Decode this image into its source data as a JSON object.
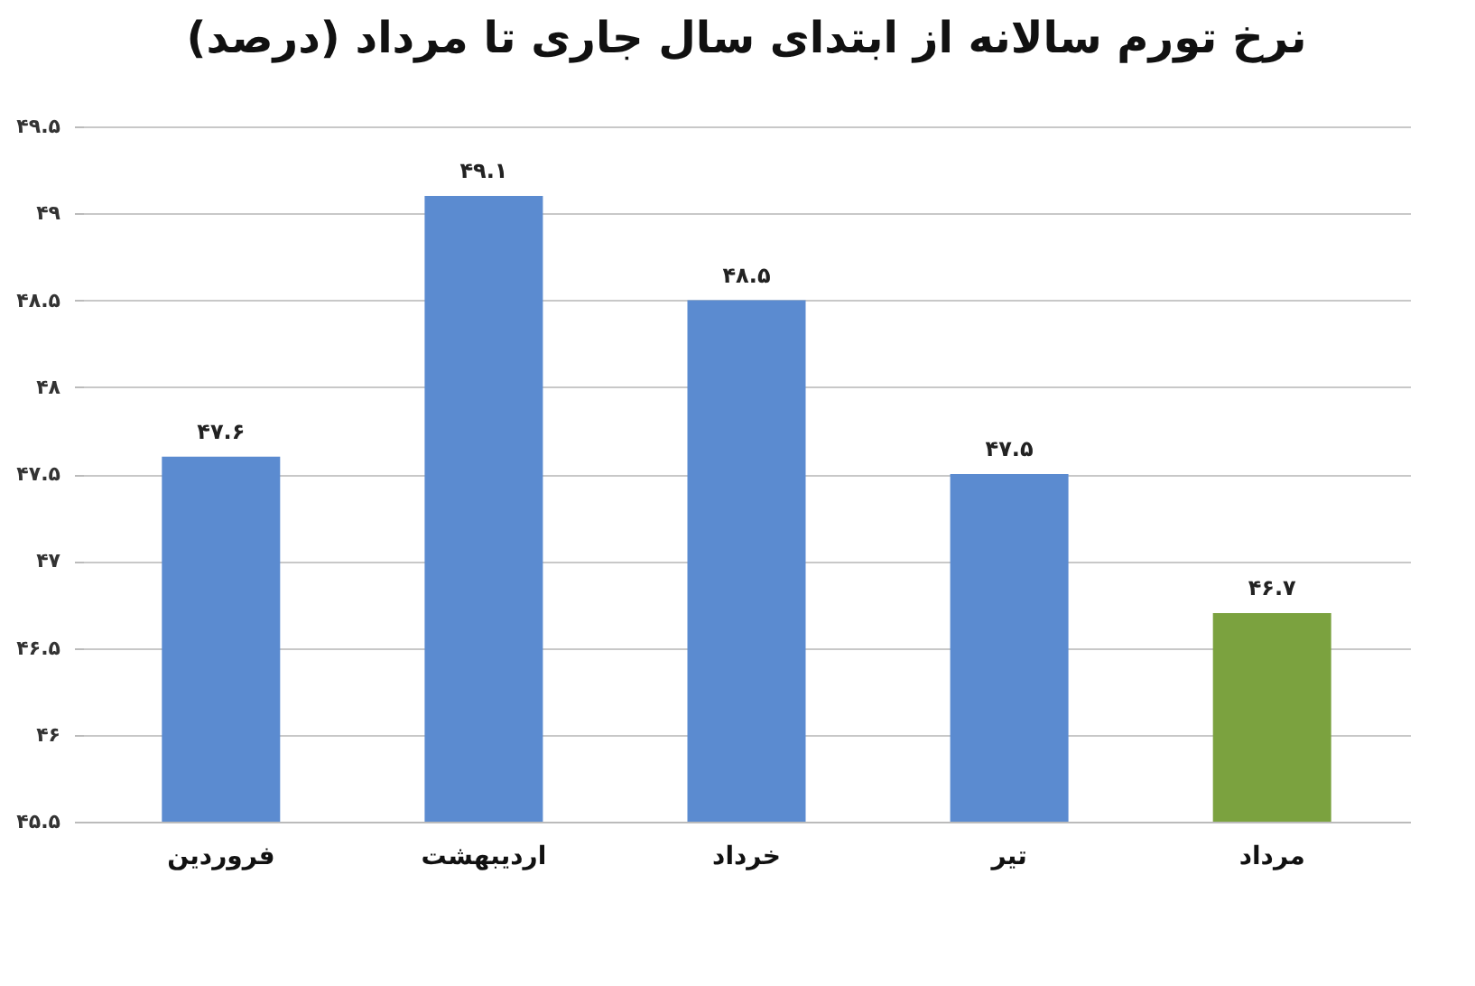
{
  "chart_data": {
    "type": "bar",
    "title": "نرخ تورم سالانه از ابتدای سال جاری تا مرداد (درصد)",
    "categories": [
      "فروردین",
      "اردیبهشت",
      "خرداد",
      "تیر",
      "مرداد"
    ],
    "values": [
      47.6,
      49.1,
      48.5,
      47.5,
      46.7
    ],
    "value_labels": [
      "۴۷.۶",
      "۴۹.۱",
      "۴۸.۵",
      "۴۷.۵",
      "۴۶.۷"
    ],
    "colors": [
      "#5b8bd0",
      "#5b8bd0",
      "#5b8bd0",
      "#5b8bd0",
      "#7ba23f"
    ],
    "ylim": [
      45.5,
      49.5
    ],
    "yticks": [
      {
        "value": 45.5,
        "label": "۴۵.۵"
      },
      {
        "value": 46,
        "label": "۴۶"
      },
      {
        "value": 46.5,
        "label": "۴۶.۵"
      },
      {
        "value": 47,
        "label": "۴۷"
      },
      {
        "value": 47.5,
        "label": "۴۷.۵"
      },
      {
        "value": 48,
        "label": "۴۸"
      },
      {
        "value": 48.5,
        "label": "۴۸.۵"
      },
      {
        "value": 49,
        "label": "۴۹"
      },
      {
        "value": 49.5,
        "label": "۴۹.۵"
      }
    ],
    "grid": "y"
  }
}
